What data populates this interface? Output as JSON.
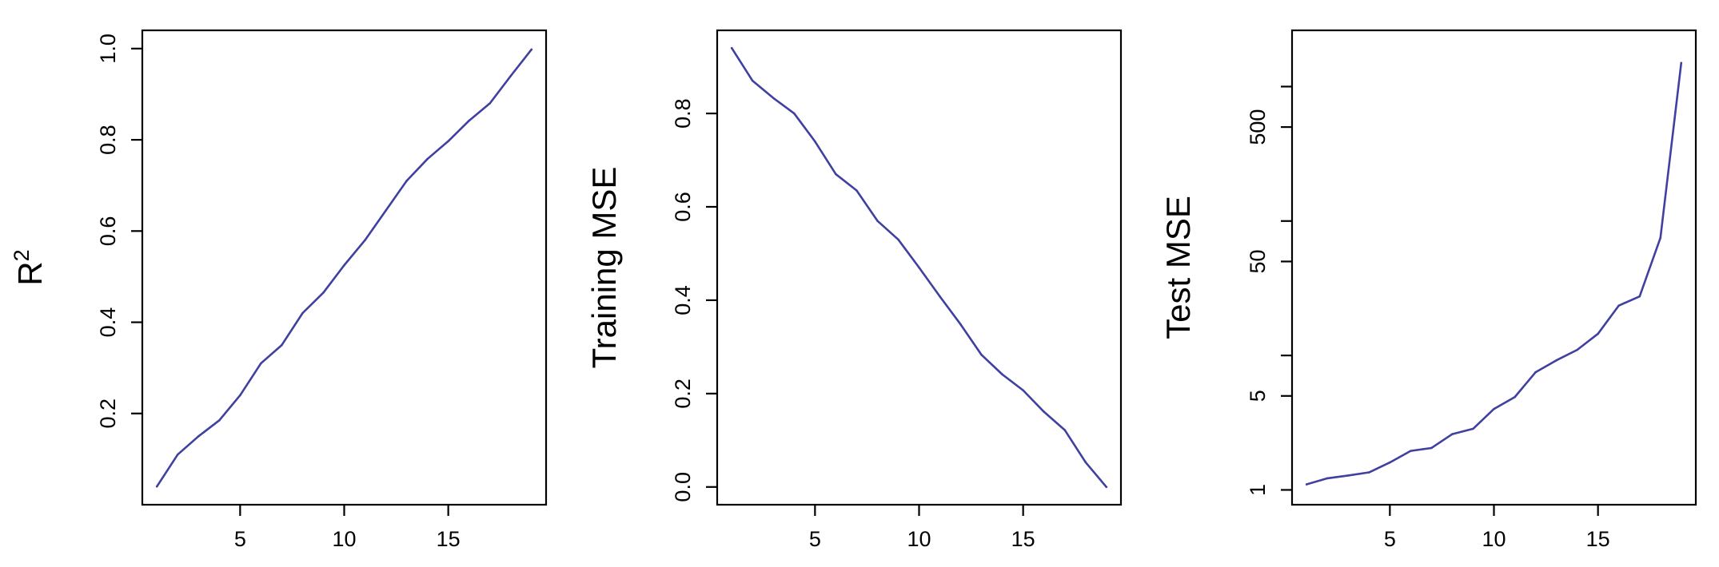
{
  "chart_data": [
    {
      "type": "line",
      "xlabel": "",
      "ylabel": "R",
      "ylabel_superscript": "2",
      "x": [
        1,
        2,
        3,
        4,
        5,
        6,
        7,
        8,
        9,
        10,
        11,
        12,
        13,
        14,
        15,
        16,
        17,
        18,
        19
      ],
      "series": [
        {
          "values": [
            0.04,
            0.11,
            0.15,
            0.185,
            0.24,
            0.31,
            0.35,
            0.42,
            0.465,
            0.525,
            0.58,
            0.645,
            0.71,
            0.758,
            0.797,
            0.842,
            0.88,
            0.94,
            0.998
          ],
          "color": "#4040A0"
        }
      ],
      "xlim": [
        0.3,
        19.7
      ],
      "ylim": [
        0.0,
        1.04
      ],
      "xticks": [
        5,
        10,
        15
      ],
      "xtick_labels": [
        "5",
        "10",
        "15"
      ],
      "yticks": [
        0.2,
        0.4,
        0.6,
        0.8,
        1.0
      ],
      "ytick_labels": [
        "0.2",
        "0.4",
        "0.6",
        "0.8",
        "1.0"
      ],
      "log_y": false,
      "grid": false
    },
    {
      "type": "line",
      "xlabel": "",
      "ylabel": "Training MSE",
      "x": [
        1,
        2,
        3,
        4,
        5,
        6,
        7,
        8,
        9,
        10,
        11,
        12,
        13,
        14,
        15,
        16,
        17,
        18,
        19
      ],
      "series": [
        {
          "values": [
            0.94,
            0.87,
            0.833,
            0.8,
            0.74,
            0.67,
            0.635,
            0.57,
            0.53,
            0.47,
            0.408,
            0.348,
            0.283,
            0.241,
            0.207,
            0.161,
            0.122,
            0.053,
            0.0
          ],
          "color": "#4040A0"
        }
      ],
      "xlim": [
        0.3,
        19.7
      ],
      "ylim": [
        -0.038,
        0.978
      ],
      "xticks": [
        5,
        10,
        15
      ],
      "xtick_labels": [
        "5",
        "10",
        "15"
      ],
      "yticks": [
        0.0,
        0.2,
        0.4,
        0.6,
        0.8
      ],
      "ytick_labels": [
        "0.0",
        "0.2",
        "0.4",
        "0.6",
        "0.8"
      ],
      "log_y": false,
      "grid": false
    },
    {
      "type": "line",
      "xlabel": "",
      "ylabel": "Test MSE",
      "x": [
        1,
        2,
        3,
        4,
        5,
        6,
        7,
        8,
        9,
        10,
        11,
        12,
        13,
        14,
        15,
        16,
        17,
        18,
        19
      ],
      "series": [
        {
          "values": [
            1.1,
            1.22,
            1.28,
            1.35,
            1.6,
            1.95,
            2.05,
            2.6,
            2.85,
            4.0,
            4.9,
            7.5,
            9.2,
            11.0,
            14.5,
            23.5,
            27.5,
            75.0,
            1500.0
          ],
          "color": "#4040A0"
        }
      ],
      "xlim": [
        0.3,
        19.7
      ],
      "ylim": [
        0.776,
        2620.0
      ],
      "xticks": [
        5,
        10,
        15
      ],
      "xtick_labels": [
        "5",
        "10",
        "15"
      ],
      "yticks": [
        1,
        5,
        10,
        50,
        100,
        500,
        1000
      ],
      "ytick_labels": [
        "1",
        "5",
        "",
        "50",
        "",
        "500",
        ""
      ],
      "log_y": true,
      "grid": false
    }
  ]
}
